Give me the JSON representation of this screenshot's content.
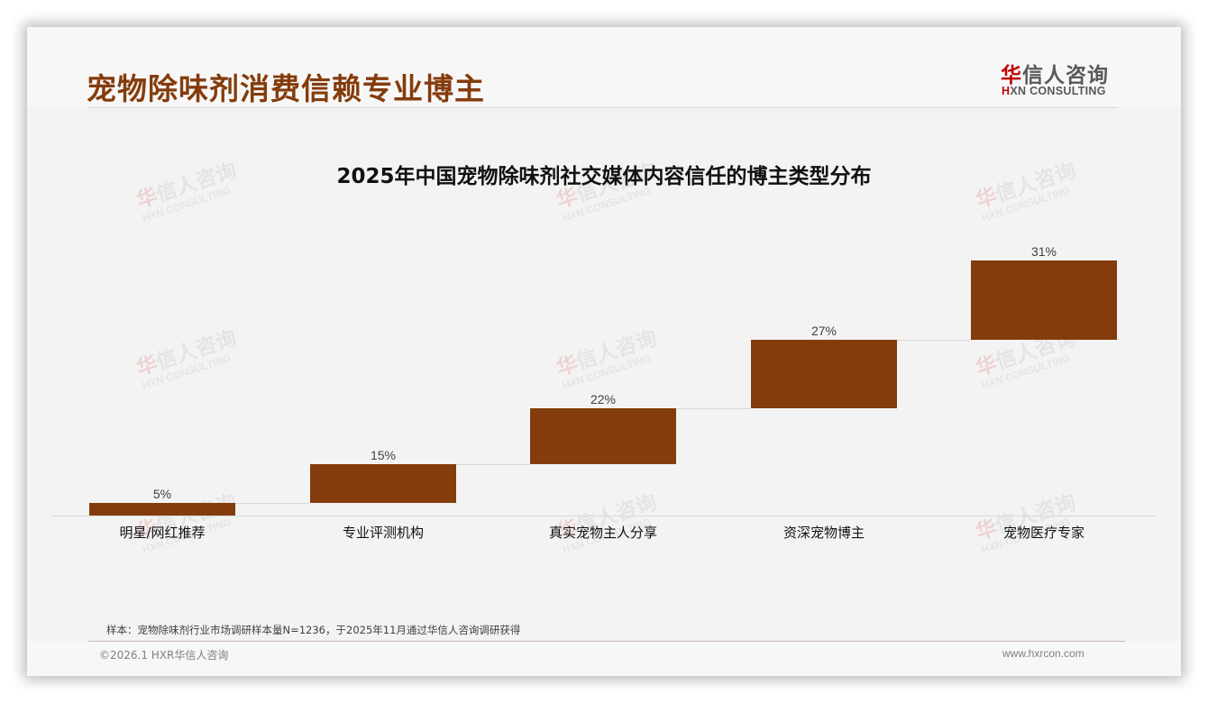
{
  "header": {
    "page_title": "宠物除味剂消费信赖专业博主",
    "logo": {
      "cn_mark": "华",
      "cn_rest": "信人咨询",
      "en_mark": "H",
      "en_rest": "XN CONSULTING"
    }
  },
  "watermark": {
    "cn_mark": "华",
    "cn_rest": "信人咨询",
    "en": "HXN CONSULTING"
  },
  "chart_data": {
    "type": "bar",
    "subtype": "waterfall",
    "title": "2025年中国宠物除味剂社交媒体内容信任的博主类型分布",
    "categories": [
      "明星/网红推荐",
      "专业评测机构",
      "真实宠物主人分享",
      "资深宠物博主",
      "宠物医疗专家"
    ],
    "values": [
      5,
      15,
      22,
      27,
      31
    ],
    "labels": [
      "5%",
      "15%",
      "22%",
      "27%",
      "31%"
    ],
    "cumulative_start": [
      0,
      5,
      20,
      42,
      69
    ],
    "cumulative_end": [
      5,
      20,
      42,
      69,
      100
    ],
    "unit": "%",
    "xlabel": "",
    "ylabel": "",
    "ylim": [
      0,
      100
    ],
    "grid": false,
    "legend": "none",
    "bar_color": "#843c0c"
  },
  "footer": {
    "note": "样本：宠物除味剂行业市场调研样本量N=1236，于2025年11月通过华信人咨询调研获得",
    "copyright": "©2026.1 HXR华信人咨询",
    "website": "www.hxrcon.com"
  }
}
